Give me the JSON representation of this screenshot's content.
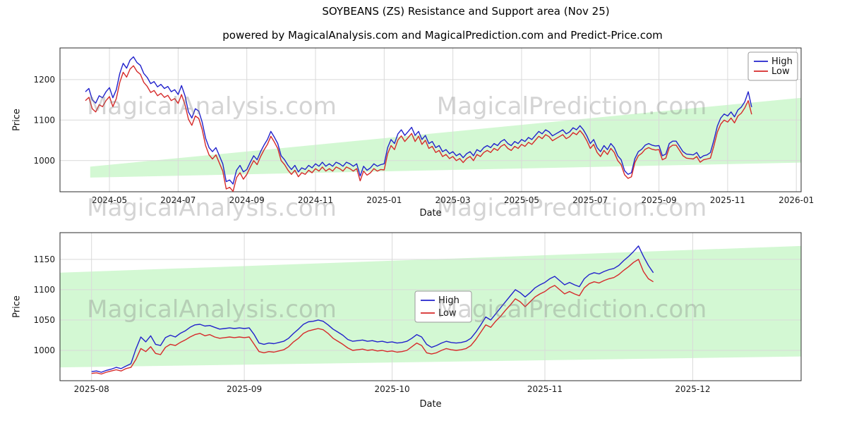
{
  "title": "SOYBEANS (ZS) Resistance and Support area (Nov 25)",
  "subtitle": "powered by MagicalAnalysis.com and MagicalPrediction.com and Predict-Price.com",
  "watermarks": {
    "analysis": "MagicalAnalysis.com",
    "prediction": "MagicalPrediction.com"
  },
  "colors": {
    "high": "#2222cc",
    "low": "#d62a2a",
    "band": "#90ee90",
    "grid": "#d9d9d9",
    "spine": "#2b2b2b",
    "tick_text": "#1a1a1a"
  },
  "chart_data": [
    {
      "type": "line",
      "xlabel": "Date",
      "ylabel": "Price",
      "xlim": [
        2.56,
        24.14
      ],
      "ylim": [
        923,
        1278
      ],
      "xticks": [
        4,
        6,
        8,
        10,
        12,
        14,
        16,
        18,
        20,
        22,
        24
      ],
      "xtick_labels": [
        "2024-05",
        "2024-07",
        "2024-09",
        "2024-11",
        "2025-01",
        "2025-03",
        "2025-05",
        "2025-07",
        "2025-09",
        "2025-11",
        "2026-01"
      ],
      "yticks": [
        1000,
        1100,
        1200
      ],
      "grid": true,
      "legend_loc": "upper right",
      "band": {
        "x": [
          3.44,
          24.14
        ],
        "upper": [
          985,
          1155
        ],
        "lower": [
          958,
          995
        ]
      },
      "series": [
        {
          "name": "High",
          "color_key": "high",
          "x0": 3.3,
          "dx": 0.1,
          "values": [
            1170,
            1178,
            1150,
            1142,
            1160,
            1155,
            1170,
            1180,
            1155,
            1175,
            1215,
            1240,
            1228,
            1248,
            1256,
            1242,
            1235,
            1215,
            1205,
            1190,
            1195,
            1182,
            1188,
            1178,
            1183,
            1170,
            1175,
            1163,
            1185,
            1160,
            1120,
            1105,
            1128,
            1122,
            1095,
            1055,
            1032,
            1022,
            1032,
            1012,
            992,
            948,
            952,
            942,
            976,
            988,
            972,
            978,
            996,
            1012,
            1002,
            1022,
            1038,
            1052,
            1072,
            1058,
            1042,
            1012,
            1002,
            988,
            978,
            988,
            972,
            982,
            978,
            988,
            982,
            992,
            986,
            996,
            986,
            992,
            986,
            996,
            992,
            986,
            996,
            992,
            986,
            992,
            962,
            986,
            976,
            982,
            992,
            986,
            990,
            992,
            1032,
            1052,
            1042,
            1066,
            1076,
            1062,
            1072,
            1082,
            1062,
            1072,
            1052,
            1062,
            1042,
            1047,
            1032,
            1037,
            1022,
            1027,
            1017,
            1022,
            1012,
            1017,
            1007,
            1017,
            1022,
            1012,
            1027,
            1022,
            1032,
            1037,
            1032,
            1042,
            1037,
            1047,
            1052,
            1042,
            1037,
            1047,
            1042,
            1052,
            1047,
            1057,
            1052,
            1062,
            1072,
            1066,
            1076,
            1071,
            1061,
            1066,
            1071,
            1076,
            1066,
            1071,
            1081,
            1076,
            1086,
            1076,
            1061,
            1042,
            1052,
            1032,
            1022,
            1037,
            1027,
            1042,
            1032,
            1012,
            1002,
            975,
            966,
            970,
            1005,
            1022,
            1028,
            1038,
            1042,
            1038,
            1036,
            1037,
            1012,
            1016,
            1042,
            1048,
            1048,
            1035,
            1022,
            1016,
            1015,
            1014,
            1020,
            1006,
            1012,
            1014,
            1020,
            1050,
            1085,
            1105,
            1115,
            1110,
            1120,
            1108,
            1125,
            1132,
            1145,
            1170,
            1132
          ]
        },
        {
          "name": "Low",
          "color_key": "low",
          "x0": 3.3,
          "dx": 0.1,
          "values": [
            1148,
            1156,
            1128,
            1120,
            1138,
            1133,
            1148,
            1158,
            1133,
            1153,
            1193,
            1218,
            1206,
            1226,
            1234,
            1220,
            1213,
            1193,
            1183,
            1168,
            1173,
            1160,
            1166,
            1156,
            1161,
            1148,
            1153,
            1141,
            1163,
            1138,
            1102,
            1087,
            1110,
            1104,
            1077,
            1037,
            1014,
            1004,
            1014,
            994,
            974,
            930,
            934,
            924,
            958,
            970,
            954,
            966,
            984,
            1000,
            990,
            1010,
            1026,
            1040,
            1060,
            1046,
            1030,
            1000,
            990,
            976,
            966,
            976,
            960,
            970,
            966,
            976,
            970,
            980,
            974,
            984,
            974,
            980,
            974,
            984,
            980,
            974,
            984,
            980,
            974,
            980,
            950,
            974,
            964,
            970,
            980,
            974,
            978,
            977,
            1017,
            1037,
            1027,
            1051,
            1061,
            1047,
            1057,
            1067,
            1047,
            1060,
            1040,
            1050,
            1030,
            1035,
            1020,
            1025,
            1010,
            1015,
            1005,
            1010,
            1000,
            1005,
            995,
            1005,
            1010,
            1000,
            1015,
            1010,
            1020,
            1025,
            1020,
            1030,
            1025,
            1035,
            1040,
            1030,
            1025,
            1035,
            1030,
            1040,
            1035,
            1045,
            1040,
            1050,
            1060,
            1054,
            1064,
            1059,
            1049,
            1054,
            1059,
            1064,
            1054,
            1059,
            1069,
            1064,
            1074,
            1064,
            1049,
            1030,
            1040,
            1020,
            1010,
            1025,
            1015,
            1030,
            1020,
            1000,
            990,
            965,
            956,
            960,
            995,
            1012,
            1018,
            1028,
            1032,
            1028,
            1026,
            1027,
            1002,
            1006,
            1032,
            1038,
            1038,
            1025,
            1012,
            1006,
            1005,
            1004,
            1010,
            996,
            1002,
            1004,
            1006,
            1036,
            1070,
            1090,
            1100,
            1095,
            1105,
            1093,
            1110,
            1117,
            1130,
            1148,
            1114
          ]
        }
      ]
    },
    {
      "type": "line",
      "xlabel": "Date",
      "ylabel": "Price",
      "xlim": [
        -6.4,
        144
      ],
      "ylim": [
        950,
        1194
      ],
      "xticks": [
        0,
        31,
        61,
        92,
        122
      ],
      "xtick_labels": [
        "2025-08",
        "2025-09",
        "2025-10",
        "2025-11",
        "2025-12"
      ],
      "yticks": [
        1000,
        1050,
        1100,
        1150
      ],
      "grid": true,
      "legend_loc": "center",
      "band": {
        "x": [
          -6.4,
          144
        ],
        "upper": [
          1128,
          1172
        ],
        "lower": [
          972,
          990
        ]
      },
      "series": [
        {
          "name": "High",
          "color_key": "high",
          "x0": 0,
          "dx": 1,
          "values": [
            965,
            966,
            964,
            967,
            969,
            972,
            970,
            974,
            978,
            1002,
            1022,
            1014,
            1024,
            1010,
            1008,
            1021,
            1025,
            1022,
            1028,
            1032,
            1038,
            1042,
            1043,
            1040,
            1041,
            1038,
            1035,
            1036,
            1037,
            1036,
            1037,
            1036,
            1037,
            1026,
            1012,
            1010,
            1012,
            1011,
            1013,
            1015,
            1020,
            1028,
            1035,
            1043,
            1047,
            1048,
            1050,
            1048,
            1042,
            1035,
            1030,
            1025,
            1018,
            1015,
            1016,
            1017,
            1015,
            1016,
            1014,
            1015,
            1013,
            1014,
            1012,
            1013,
            1015,
            1020,
            1026,
            1022,
            1010,
            1005,
            1008,
            1012,
            1015,
            1013,
            1012,
            1013,
            1015,
            1020,
            1030,
            1042,
            1055,
            1050,
            1060,
            1070,
            1080,
            1090,
            1100,
            1095,
            1088,
            1095,
            1103,
            1108,
            1112,
            1118,
            1122,
            1115,
            1108,
            1112,
            1108,
            1105,
            1118,
            1125,
            1128,
            1126,
            1130,
            1133,
            1135,
            1140,
            1148,
            1155,
            1163,
            1172,
            1155,
            1140,
            1128
          ]
        },
        {
          "name": "Low",
          "color_key": "low",
          "x0": 0,
          "dx": 1,
          "values": [
            962,
            963,
            961,
            964,
            966,
            968,
            966,
            970,
            972,
            985,
            1003,
            998,
            1006,
            995,
            993,
            1005,
            1010,
            1008,
            1013,
            1017,
            1022,
            1026,
            1028,
            1024,
            1026,
            1022,
            1020,
            1021,
            1022,
            1021,
            1022,
            1021,
            1022,
            1010,
            998,
            996,
            998,
            997,
            999,
            1001,
            1006,
            1014,
            1020,
            1028,
            1032,
            1034,
            1036,
            1034,
            1028,
            1020,
            1015,
            1010,
            1004,
            1000,
            1001,
            1002,
            1000,
            1001,
            999,
            1000,
            998,
            999,
            997,
            998,
            1000,
            1006,
            1012,
            1008,
            996,
            994,
            996,
            1000,
            1003,
            1001,
            1000,
            1001,
            1003,
            1008,
            1018,
            1030,
            1042,
            1038,
            1048,
            1056,
            1066,
            1075,
            1085,
            1080,
            1072,
            1080,
            1088,
            1093,
            1097,
            1103,
            1107,
            1100,
            1093,
            1097,
            1093,
            1090,
            1103,
            1110,
            1113,
            1111,
            1115,
            1118,
            1120,
            1125,
            1132,
            1138,
            1145,
            1150,
            1130,
            1118,
            1113
          ]
        }
      ]
    }
  ]
}
